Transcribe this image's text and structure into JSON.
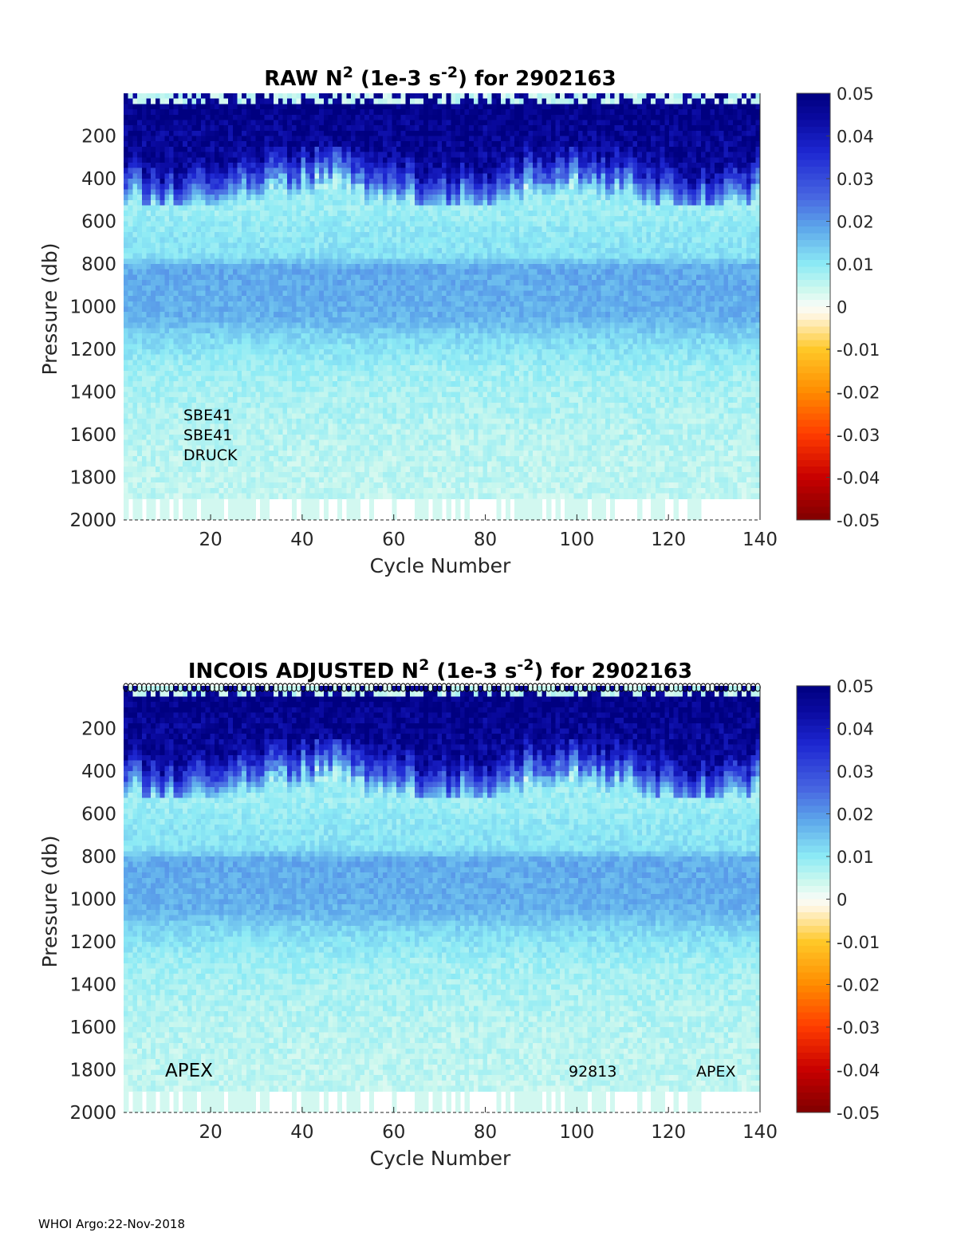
{
  "footer": "WHOI Argo:22-Nov-2018",
  "chart_data": [
    {
      "type": "heatmap",
      "title": "RAW N",
      "title_sup1": "2",
      "title_mid": " (1e-3 s",
      "title_sup2": "-2",
      "title_end": ") for 2902163",
      "xlabel": "Cycle Number",
      "ylabel": "Pressure (db)",
      "xlim": [
        1,
        140
      ],
      "ylim": [
        2000,
        0
      ],
      "x_ticks": [
        20,
        40,
        60,
        80,
        100,
        120,
        140
      ],
      "y_ticks": [
        200,
        400,
        600,
        800,
        1000,
        1200,
        1400,
        1600,
        1800,
        2000
      ],
      "colorbar": {
        "min": -0.05,
        "max": 0.05,
        "ticks": [
          "0.05",
          "0.04",
          "0.03",
          "0.02",
          "0.01",
          "0",
          "-0.01",
          "-0.02",
          "-0.03",
          "-0.04",
          "-0.05"
        ],
        "colormap": "jet-with-white-center"
      },
      "depth_profile": [
        {
          "p": 0,
          "v": 0.0
        },
        {
          "p": 40,
          "v": 0.05
        },
        {
          "p": 300,
          "v": 0.045
        },
        {
          "p": 420,
          "v": 0.025
        },
        {
          "p": 500,
          "v": 0.008
        },
        {
          "p": 760,
          "v": 0.011
        },
        {
          "p": 820,
          "v": 0.018
        },
        {
          "p": 1050,
          "v": 0.017
        },
        {
          "p": 1150,
          "v": 0.012
        },
        {
          "p": 1300,
          "v": 0.008
        },
        {
          "p": 1600,
          "v": 0.006
        },
        {
          "p": 1900,
          "v": 0.005
        }
      ],
      "annotations": [
        "SBE41",
        "SBE41",
        "DRUCK"
      ],
      "top_markers": false
    },
    {
      "type": "heatmap",
      "title": "INCOIS  ADJUSTED N",
      "title_sup1": "2",
      "title_mid": " (1e-3 s",
      "title_sup2": "-2",
      "title_end": ") for 2902163",
      "xlabel": "Cycle Number",
      "ylabel": "Pressure (db)",
      "xlim": [
        1,
        140
      ],
      "ylim": [
        2000,
        0
      ],
      "x_ticks": [
        20,
        40,
        60,
        80,
        100,
        120,
        140
      ],
      "y_ticks": [
        200,
        400,
        600,
        800,
        1000,
        1200,
        1400,
        1600,
        1800,
        2000
      ],
      "colorbar": {
        "min": -0.05,
        "max": 0.05,
        "ticks": [
          "0.05",
          "0.04",
          "0.03",
          "0.02",
          "0.01",
          "0",
          "-0.01",
          "-0.02",
          "-0.03",
          "-0.04",
          "-0.05"
        ],
        "colormap": "jet-with-white-center"
      },
      "depth_profile": [
        {
          "p": 0,
          "v": 0.0
        },
        {
          "p": 40,
          "v": 0.05
        },
        {
          "p": 300,
          "v": 0.045
        },
        {
          "p": 420,
          "v": 0.025
        },
        {
          "p": 500,
          "v": 0.008
        },
        {
          "p": 760,
          "v": 0.011
        },
        {
          "p": 820,
          "v": 0.018
        },
        {
          "p": 1050,
          "v": 0.017
        },
        {
          "p": 1150,
          "v": 0.012
        },
        {
          "p": 1300,
          "v": 0.008
        },
        {
          "p": 1600,
          "v": 0.006
        },
        {
          "p": 1900,
          "v": 0.005
        }
      ],
      "annotations": [
        "APEX",
        "92813",
        "APEX"
      ],
      "top_markers": true
    }
  ]
}
